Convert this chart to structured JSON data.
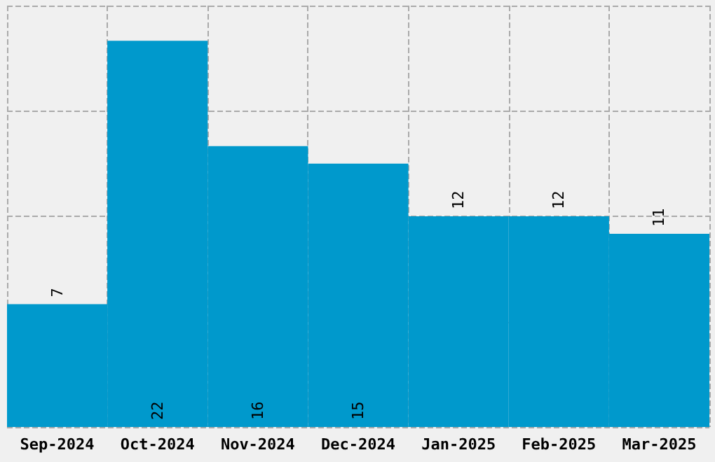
{
  "chart_data": {
    "type": "bar",
    "categories": [
      "Sep-2024",
      "Oct-2024",
      "Nov-2024",
      "Dec-2024",
      "Jan-2025",
      "Feb-2025",
      "Mar-2025"
    ],
    "values": [
      7,
      22,
      16,
      15,
      12,
      12,
      11
    ],
    "color": "#0099cc",
    "ylim": [
      0,
      24
    ],
    "yticks": [
      0,
      6,
      12,
      18,
      24
    ],
    "grid": true,
    "tick_labels": "x",
    "data_labels": true
  }
}
